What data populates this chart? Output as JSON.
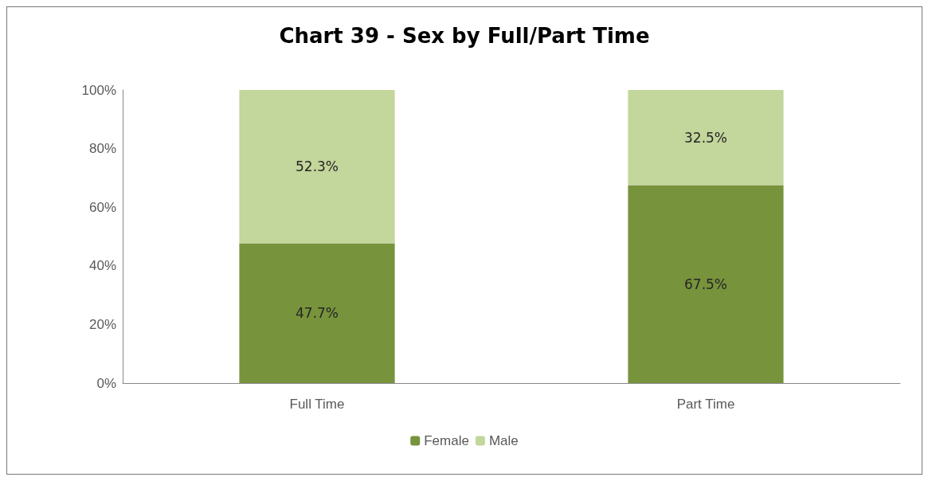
{
  "chart_data": {
    "type": "bar",
    "title": "Chart 39 - Sex by Full/Part Time",
    "categories": [
      "Full Time",
      "Part Time"
    ],
    "stacked": true,
    "series": [
      {
        "name": "Female",
        "color": "#77933c",
        "values": [
          47.7,
          67.5
        ],
        "value_labels": [
          "47.7%",
          "67.5%"
        ]
      },
      {
        "name": "Male",
        "color": "#c3d69b",
        "values": [
          52.3,
          32.5
        ],
        "value_labels": [
          "52.3%",
          "32.5%"
        ]
      }
    ],
    "ylim": [
      0,
      100
    ],
    "yticks": [
      {
        "value": 0,
        "label": "0%"
      },
      {
        "value": 20,
        "label": "20%"
      },
      {
        "value": 40,
        "label": "40%"
      },
      {
        "value": 60,
        "label": "60%"
      },
      {
        "value": 80,
        "label": "80%"
      },
      {
        "value": 100,
        "label": "100%"
      }
    ],
    "grid": false,
    "legend": "bottom"
  }
}
